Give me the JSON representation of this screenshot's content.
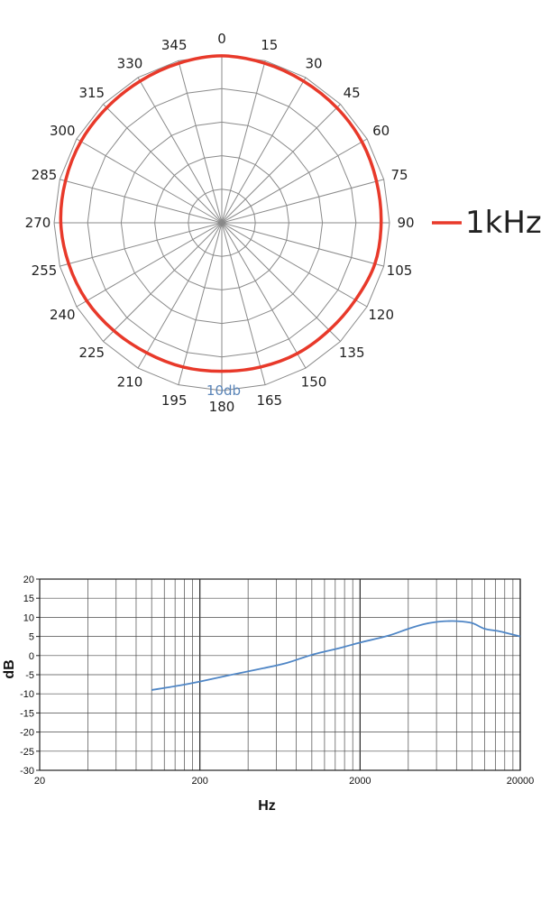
{
  "chart_data": [
    {
      "type": "polar",
      "angle_tick_labels": [
        "0",
        "15",
        "30",
        "45",
        "60",
        "75",
        "90",
        "105",
        "120",
        "135",
        "150",
        "165",
        "180",
        "195",
        "210",
        "225",
        "240",
        "255",
        "270",
        "285",
        "300",
        "315",
        "330",
        "345"
      ],
      "ring_label": "10db",
      "series": [
        {
          "name": "1kHz",
          "color": "#e8392a",
          "angles": [
            0,
            15,
            30,
            45,
            60,
            75,
            90,
            105,
            120,
            135,
            150,
            165,
            180,
            195,
            210,
            225,
            240,
            255,
            270,
            285,
            300,
            315,
            330,
            345
          ],
          "radius_fraction": [
            0.995,
            0.985,
            0.975,
            0.97,
            0.965,
            0.955,
            0.95,
            0.945,
            0.92,
            0.905,
            0.9,
            0.89,
            0.885,
            0.89,
            0.895,
            0.91,
            0.93,
            0.945,
            0.96,
            0.965,
            0.97,
            0.97,
            0.975,
            0.985
          ]
        }
      ],
      "legend_position": "right",
      "grid": true
    },
    {
      "type": "line",
      "x_scale": "log",
      "xlim": [
        20,
        20000
      ],
      "ylim": [
        -30,
        20
      ],
      "x_tick_labels": [
        "20",
        "200",
        "2000",
        "20000"
      ],
      "x_ticks": [
        20,
        200,
        2000,
        20000
      ],
      "y_ticks": [
        20,
        15,
        10,
        5,
        0,
        -5,
        -10,
        -15,
        -20,
        -25,
        -30
      ],
      "y_tick_labels": [
        "20",
        "15",
        "10",
        "5",
        "0",
        "-5",
        "-10",
        "-15",
        "-20",
        "-25",
        "-30"
      ],
      "xlabel": "Hz",
      "ylabel": "dB",
      "grid": true,
      "series": [
        {
          "color": "#4f86c6",
          "x": [
            100,
            150,
            200,
            300,
            500,
            700,
            1000,
            1500,
            2000,
            3000,
            4000,
            5000,
            6000,
            7000,
            8000,
            10000,
            12000,
            15000,
            20000
          ],
          "y": [
            -9,
            -7.8,
            -6.8,
            -5.2,
            -3.3,
            -1.9,
            0.2,
            2,
            3.4,
            5.2,
            7,
            8.2,
            8.8,
            9,
            9,
            8.5,
            7,
            6.3,
            5
          ]
        }
      ]
    }
  ]
}
